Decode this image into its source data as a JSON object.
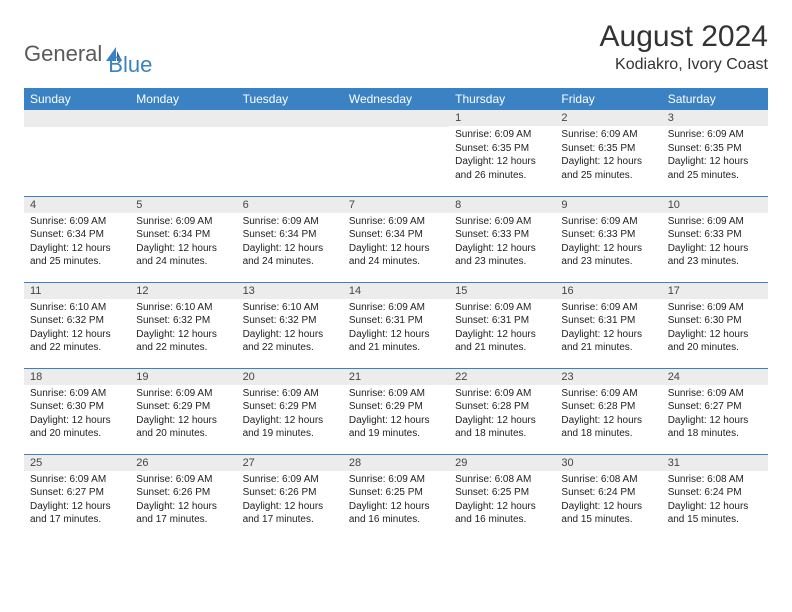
{
  "logo": {
    "part1": "General",
    "part2": "Blue"
  },
  "header": {
    "month": "August 2024",
    "location": "Kodiakro, Ivory Coast"
  },
  "style": {
    "header_bg": "#3b82c4",
    "header_text": "#ffffff",
    "daynum_bg": "#ececec",
    "body_text": "#222222",
    "page_bg": "#ffffff",
    "week_divider": "#3b82c4",
    "title_fontsize": 30,
    "location_fontsize": 16,
    "dayheader_fontsize": 12,
    "cell_fontsize": 10
  },
  "days_of_week": [
    "Sunday",
    "Monday",
    "Tuesday",
    "Wednesday",
    "Thursday",
    "Friday",
    "Saturday"
  ],
  "weeks": [
    [
      null,
      null,
      null,
      null,
      {
        "n": "1",
        "sr": "6:09 AM",
        "ss": "6:35 PM",
        "dl": "12 hours and 26 minutes."
      },
      {
        "n": "2",
        "sr": "6:09 AM",
        "ss": "6:35 PM",
        "dl": "12 hours and 25 minutes."
      },
      {
        "n": "3",
        "sr": "6:09 AM",
        "ss": "6:35 PM",
        "dl": "12 hours and 25 minutes."
      }
    ],
    [
      {
        "n": "4",
        "sr": "6:09 AM",
        "ss": "6:34 PM",
        "dl": "12 hours and 25 minutes."
      },
      {
        "n": "5",
        "sr": "6:09 AM",
        "ss": "6:34 PM",
        "dl": "12 hours and 24 minutes."
      },
      {
        "n": "6",
        "sr": "6:09 AM",
        "ss": "6:34 PM",
        "dl": "12 hours and 24 minutes."
      },
      {
        "n": "7",
        "sr": "6:09 AM",
        "ss": "6:34 PM",
        "dl": "12 hours and 24 minutes."
      },
      {
        "n": "8",
        "sr": "6:09 AM",
        "ss": "6:33 PM",
        "dl": "12 hours and 23 minutes."
      },
      {
        "n": "9",
        "sr": "6:09 AM",
        "ss": "6:33 PM",
        "dl": "12 hours and 23 minutes."
      },
      {
        "n": "10",
        "sr": "6:09 AM",
        "ss": "6:33 PM",
        "dl": "12 hours and 23 minutes."
      }
    ],
    [
      {
        "n": "11",
        "sr": "6:10 AM",
        "ss": "6:32 PM",
        "dl": "12 hours and 22 minutes."
      },
      {
        "n": "12",
        "sr": "6:10 AM",
        "ss": "6:32 PM",
        "dl": "12 hours and 22 minutes."
      },
      {
        "n": "13",
        "sr": "6:10 AM",
        "ss": "6:32 PM",
        "dl": "12 hours and 22 minutes."
      },
      {
        "n": "14",
        "sr": "6:09 AM",
        "ss": "6:31 PM",
        "dl": "12 hours and 21 minutes."
      },
      {
        "n": "15",
        "sr": "6:09 AM",
        "ss": "6:31 PM",
        "dl": "12 hours and 21 minutes."
      },
      {
        "n": "16",
        "sr": "6:09 AM",
        "ss": "6:31 PM",
        "dl": "12 hours and 21 minutes."
      },
      {
        "n": "17",
        "sr": "6:09 AM",
        "ss": "6:30 PM",
        "dl": "12 hours and 20 minutes."
      }
    ],
    [
      {
        "n": "18",
        "sr": "6:09 AM",
        "ss": "6:30 PM",
        "dl": "12 hours and 20 minutes."
      },
      {
        "n": "19",
        "sr": "6:09 AM",
        "ss": "6:29 PM",
        "dl": "12 hours and 20 minutes."
      },
      {
        "n": "20",
        "sr": "6:09 AM",
        "ss": "6:29 PM",
        "dl": "12 hours and 19 minutes."
      },
      {
        "n": "21",
        "sr": "6:09 AM",
        "ss": "6:29 PM",
        "dl": "12 hours and 19 minutes."
      },
      {
        "n": "22",
        "sr": "6:09 AM",
        "ss": "6:28 PM",
        "dl": "12 hours and 18 minutes."
      },
      {
        "n": "23",
        "sr": "6:09 AM",
        "ss": "6:28 PM",
        "dl": "12 hours and 18 minutes."
      },
      {
        "n": "24",
        "sr": "6:09 AM",
        "ss": "6:27 PM",
        "dl": "12 hours and 18 minutes."
      }
    ],
    [
      {
        "n": "25",
        "sr": "6:09 AM",
        "ss": "6:27 PM",
        "dl": "12 hours and 17 minutes."
      },
      {
        "n": "26",
        "sr": "6:09 AM",
        "ss": "6:26 PM",
        "dl": "12 hours and 17 minutes."
      },
      {
        "n": "27",
        "sr": "6:09 AM",
        "ss": "6:26 PM",
        "dl": "12 hours and 17 minutes."
      },
      {
        "n": "28",
        "sr": "6:09 AM",
        "ss": "6:25 PM",
        "dl": "12 hours and 16 minutes."
      },
      {
        "n": "29",
        "sr": "6:08 AM",
        "ss": "6:25 PM",
        "dl": "12 hours and 16 minutes."
      },
      {
        "n": "30",
        "sr": "6:08 AM",
        "ss": "6:24 PM",
        "dl": "12 hours and 15 minutes."
      },
      {
        "n": "31",
        "sr": "6:08 AM",
        "ss": "6:24 PM",
        "dl": "12 hours and 15 minutes."
      }
    ]
  ],
  "labels": {
    "sunrise": "Sunrise:",
    "sunset": "Sunset:",
    "daylight": "Daylight:"
  }
}
